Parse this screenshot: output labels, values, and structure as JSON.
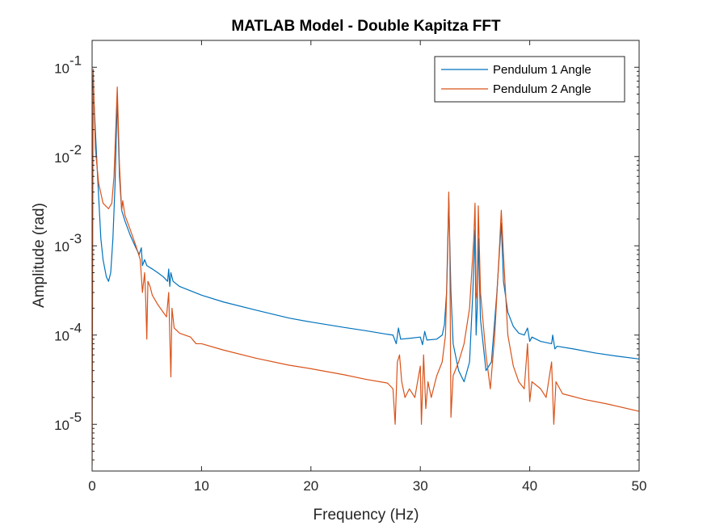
{
  "chart_data": {
    "type": "line",
    "title": "MATLAB Model - Double Kapitza FFT",
    "xlabel": "Frequency (Hz)",
    "ylabel": "Amplitude (rad)",
    "xlim": [
      0,
      50
    ],
    "ylim": [
      3e-06,
      0.2
    ],
    "yscale": "log",
    "grid": false,
    "legend_placement": "top-right",
    "x_ticks": [
      0,
      10,
      20,
      30,
      40,
      50
    ],
    "x_tick_labels": [
      "0",
      "10",
      "20",
      "30",
      "40",
      "50"
    ],
    "y_ticks": [
      1e-05,
      0.0001,
      0.001,
      0.01,
      0.1
    ],
    "y_tick_labels": [
      {
        "base": "10",
        "exp": "-5"
      },
      {
        "base": "10",
        "exp": "-4"
      },
      {
        "base": "10",
        "exp": "-3"
      },
      {
        "base": "10",
        "exp": "-2"
      },
      {
        "base": "10",
        "exp": "-1"
      }
    ],
    "series": [
      {
        "name": "Pendulum 1 Angle",
        "color": "#0072BD",
        "points": [
          [
            0.0,
            0.08
          ],
          [
            0.2,
            0.035
          ],
          [
            0.5,
            0.006
          ],
          [
            0.8,
            0.0012
          ],
          [
            1.0,
            0.0007
          ],
          [
            1.3,
            0.00045
          ],
          [
            1.5,
            0.0004
          ],
          [
            1.7,
            0.0005
          ],
          [
            1.9,
            0.0012
          ],
          [
            2.1,
            0.005
          ],
          [
            2.3,
            0.045
          ],
          [
            2.5,
            0.006
          ],
          [
            2.7,
            0.0025
          ],
          [
            3.0,
            0.0019
          ],
          [
            3.5,
            0.0013
          ],
          [
            4.0,
            0.00095
          ],
          [
            4.3,
            0.0008
          ],
          [
            4.5,
            0.00095
          ],
          [
            4.6,
            0.0006
          ],
          [
            4.8,
            0.0007
          ],
          [
            5.0,
            0.0006
          ],
          [
            5.5,
            0.00055
          ],
          [
            6.0,
            0.0005
          ],
          [
            6.5,
            0.00045
          ],
          [
            6.9,
            0.0004
          ],
          [
            7.0,
            0.00055
          ],
          [
            7.1,
            0.00035
          ],
          [
            7.2,
            0.0005
          ],
          [
            7.4,
            0.0004
          ],
          [
            8.0,
            0.00035
          ],
          [
            10.0,
            0.00028
          ],
          [
            12.0,
            0.000235
          ],
          [
            15.0,
            0.00019
          ],
          [
            18.0,
            0.000155
          ],
          [
            20.0,
            0.00014
          ],
          [
            23.0,
            0.000122
          ],
          [
            25.0,
            0.000112
          ],
          [
            27.0,
            0.000102
          ],
          [
            27.5,
            0.0001
          ],
          [
            27.8,
            8e-05
          ],
          [
            28.0,
            0.00012
          ],
          [
            28.2,
            9e-05
          ],
          [
            29.0,
            9.2e-05
          ],
          [
            30.0,
            9.5e-05
          ],
          [
            30.2,
            7.8e-05
          ],
          [
            30.4,
            0.00011
          ],
          [
            30.6,
            8.8e-05
          ],
          [
            31.5,
            9e-05
          ],
          [
            32.0,
            0.0001
          ],
          [
            32.2,
            0.00013
          ],
          [
            32.4,
            0.0003
          ],
          [
            32.6,
            0.0035
          ],
          [
            32.8,
            0.0003
          ],
          [
            33.0,
            8e-05
          ],
          [
            33.5,
            4e-05
          ],
          [
            34.0,
            3e-05
          ],
          [
            34.5,
            5e-05
          ],
          [
            34.8,
            0.0003
          ],
          [
            35.0,
            0.0015
          ],
          [
            35.1,
            0.0001
          ],
          [
            35.2,
            0.0002
          ],
          [
            35.3,
            0.0012
          ],
          [
            35.5,
            0.00015
          ],
          [
            36.0,
            4e-05
          ],
          [
            36.5,
            5e-05
          ],
          [
            37.0,
            0.0003
          ],
          [
            37.4,
            0.0018
          ],
          [
            37.6,
            0.0004
          ],
          [
            38.0,
            0.00018
          ],
          [
            38.5,
            0.000125
          ],
          [
            39.0,
            0.000105
          ],
          [
            39.5,
            0.0001
          ],
          [
            39.8,
            0.00012
          ],
          [
            40.0,
            8.5e-05
          ],
          [
            40.2,
            9.5e-05
          ],
          [
            41.0,
            8.5e-05
          ],
          [
            42.0,
            8e-05
          ],
          [
            42.1,
            0.0001
          ],
          [
            42.3,
            7e-05
          ],
          [
            42.5,
            7.5e-05
          ],
          [
            44.0,
            7e-05
          ],
          [
            46.0,
            6.3e-05
          ],
          [
            48.0,
            5.8e-05
          ],
          [
            50.0,
            5.4e-05
          ]
        ]
      },
      {
        "name": "Pendulum 2 Angle",
        "color": "#D95319",
        "points": [
          [
            0.0,
            3.5e-06
          ],
          [
            0.1,
            0.095
          ],
          [
            0.3,
            0.012
          ],
          [
            0.6,
            0.005
          ],
          [
            1.0,
            0.003
          ],
          [
            1.5,
            0.0026
          ],
          [
            1.8,
            0.003
          ],
          [
            2.0,
            0.006
          ],
          [
            2.3,
            0.06
          ],
          [
            2.5,
            0.008
          ],
          [
            2.7,
            0.0025
          ],
          [
            2.8,
            0.0032
          ],
          [
            3.0,
            0.0022
          ],
          [
            3.5,
            0.0015
          ],
          [
            4.0,
            0.001
          ],
          [
            4.4,
            0.0007
          ],
          [
            4.6,
            0.0003
          ],
          [
            4.8,
            0.0005
          ],
          [
            4.9,
            0.00025
          ],
          [
            5.0,
            9e-05
          ],
          [
            5.1,
            0.0004
          ],
          [
            5.3,
            0.00035
          ],
          [
            5.5,
            0.00028
          ],
          [
            6.0,
            0.00022
          ],
          [
            6.5,
            0.00018
          ],
          [
            6.8,
            0.00016
          ],
          [
            7.0,
            0.0003
          ],
          [
            7.1,
            0.0001
          ],
          [
            7.2,
            3.4e-05
          ],
          [
            7.3,
            0.0002
          ],
          [
            7.5,
            0.00012
          ],
          [
            8.0,
            0.000105
          ],
          [
            9.0,
            9.5e-05
          ],
          [
            9.5,
            8e-05
          ],
          [
            10.0,
            8e-05
          ],
          [
            12.0,
            6.8e-05
          ],
          [
            15.0,
            5.5e-05
          ],
          [
            18.0,
            4.6e-05
          ],
          [
            20.0,
            4.2e-05
          ],
          [
            23.0,
            3.6e-05
          ],
          [
            25.0,
            3.2e-05
          ],
          [
            27.0,
            2.9e-05
          ],
          [
            27.5,
            2.5e-05
          ],
          [
            27.7,
            1e-05
          ],
          [
            27.9,
            5e-05
          ],
          [
            28.1,
            6e-05
          ],
          [
            28.3,
            3e-05
          ],
          [
            28.6,
            2e-05
          ],
          [
            29.0,
            2.5e-05
          ],
          [
            29.5,
            2e-05
          ],
          [
            30.0,
            4.5e-05
          ],
          [
            30.1,
            1e-05
          ],
          [
            30.3,
            6e-05
          ],
          [
            30.5,
            1.5e-05
          ],
          [
            30.7,
            3e-05
          ],
          [
            31.0,
            2e-05
          ],
          [
            31.5,
            3.5e-05
          ],
          [
            32.0,
            5e-05
          ],
          [
            32.3,
            0.0001
          ],
          [
            32.5,
            0.0008
          ],
          [
            32.6,
            0.004
          ],
          [
            32.7,
            0.0008
          ],
          [
            32.8,
            1.2e-05
          ],
          [
            33.0,
            3.5e-05
          ],
          [
            33.5,
            5e-05
          ],
          [
            34.0,
            8e-05
          ],
          [
            34.5,
            0.0002
          ],
          [
            34.9,
            0.0013
          ],
          [
            35.0,
            0.003
          ],
          [
            35.1,
            0.0003
          ],
          [
            35.2,
            0.00025
          ],
          [
            35.3,
            0.0028
          ],
          [
            35.5,
            0.0003
          ],
          [
            36.0,
            6e-05
          ],
          [
            36.4,
            2.5e-05
          ],
          [
            36.8,
            0.0001
          ],
          [
            37.2,
            0.0008
          ],
          [
            37.4,
            0.0025
          ],
          [
            37.6,
            0.0008
          ],
          [
            38.0,
            0.0001
          ],
          [
            38.5,
            4.5e-05
          ],
          [
            39.0,
            3e-05
          ],
          [
            39.5,
            2.5e-05
          ],
          [
            39.8,
            8e-05
          ],
          [
            40.0,
            1.8e-05
          ],
          [
            40.2,
            3e-05
          ],
          [
            41.0,
            2.5e-05
          ],
          [
            41.5,
            2e-05
          ],
          [
            42.0,
            5e-05
          ],
          [
            42.2,
            1e-05
          ],
          [
            42.4,
            3e-05
          ],
          [
            43.0,
            2.2e-05
          ],
          [
            45.0,
            1.9e-05
          ],
          [
            47.0,
            1.7e-05
          ],
          [
            50.0,
            1.4e-05
          ]
        ]
      }
    ]
  }
}
